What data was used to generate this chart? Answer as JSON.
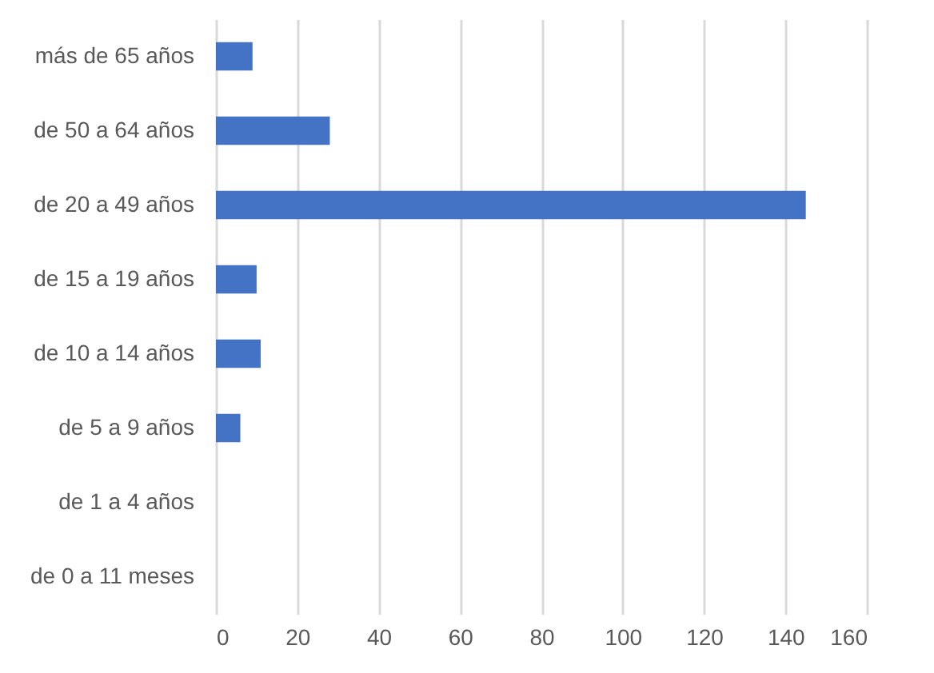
{
  "chart_data": {
    "type": "bar",
    "orientation": "horizontal",
    "categories": [
      "más de 65 años",
      "de 50 a 64 años",
      "de 20 a 49 años",
      "de 15 a 19 años",
      "de 10 a 14 años",
      "de 5 a 9 años",
      "de 1 a 4 años",
      "de 0 a 11 meses"
    ],
    "values": [
      9,
      28,
      145,
      10,
      11,
      6,
      0,
      0
    ],
    "color": "#4472c4",
    "xlim": [
      0,
      160
    ],
    "xticks": [
      0,
      20,
      40,
      60,
      80,
      100,
      120,
      140,
      160
    ],
    "grid": "x"
  }
}
